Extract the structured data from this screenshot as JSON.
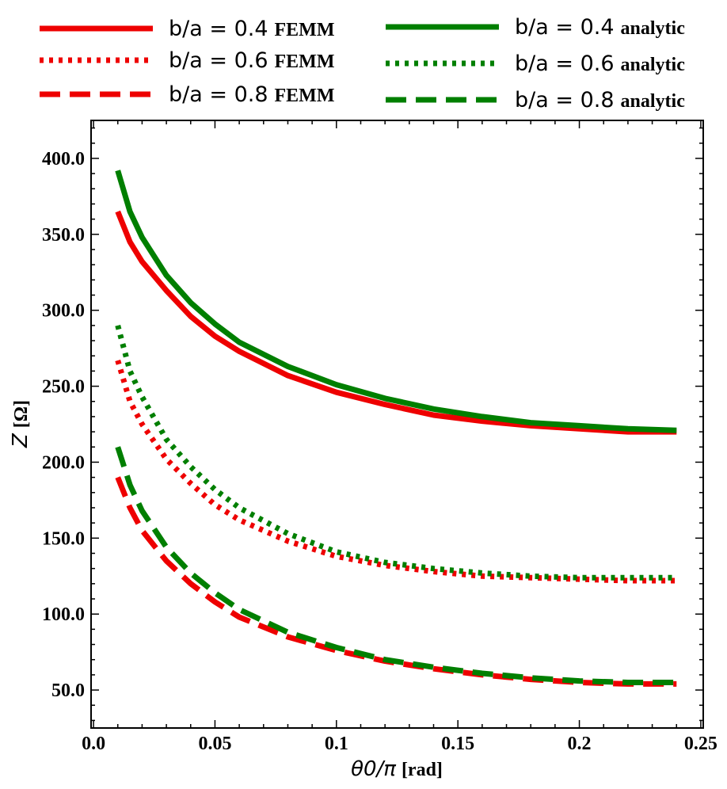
{
  "chart_data": {
    "type": "line",
    "xlabel": "θ0/π",
    "xlabel_unit": "[rad]",
    "ylabel": "Z",
    "ylabel_unit": "[Ω]",
    "xlim": [
      -0.001,
      0.251
    ],
    "ylim": [
      25,
      425
    ],
    "x_ticks": [
      0.0,
      0.05,
      0.1,
      0.15,
      0.2,
      0.25
    ],
    "x_tick_labels": [
      "0.0",
      "0.05",
      "0.1",
      "0.15",
      "0.2",
      "0.25"
    ],
    "y_ticks": [
      50,
      100,
      150,
      200,
      250,
      300,
      350,
      400
    ],
    "y_tick_labels": [
      "50.0",
      "100.0",
      "150.0",
      "200.0",
      "250.0",
      "300.0",
      "350.0",
      "400.0"
    ],
    "grid": false,
    "legend_position": "top, above plot",
    "x": [
      0.01,
      0.015,
      0.02,
      0.03,
      0.04,
      0.05,
      0.06,
      0.08,
      0.1,
      0.12,
      0.14,
      0.16,
      0.18,
      0.2,
      0.22,
      0.24
    ],
    "series": [
      {
        "name_prefix": "b/a = 0.4",
        "name_suffix": "FEMM",
        "color": "#ee0000",
        "dash": "solid",
        "values": [
          365,
          345,
          332,
          313,
          296,
          283,
          273,
          257,
          246,
          238,
          231,
          227,
          224,
          222,
          220,
          220
        ]
      },
      {
        "name_prefix": "b/a = 0.6",
        "name_suffix": "FEMM",
        "color": "#ee0000",
        "dash": "dotted",
        "values": [
          267,
          240,
          225,
          202,
          186,
          172,
          162,
          148,
          138,
          132,
          128,
          125,
          124,
          123,
          122,
          122
        ]
      },
      {
        "name_prefix": "b/a = 0.8",
        "name_suffix": "FEMM",
        "color": "#ee0000",
        "dash": "dashed",
        "values": [
          190,
          170,
          155,
          135,
          120,
          108,
          98,
          85,
          76,
          69,
          64,
          60,
          57,
          55,
          54,
          54
        ]
      },
      {
        "name_prefix": "b/a = 0.4",
        "name_suffix": "analytic",
        "color": "#007f00",
        "dash": "solid",
        "values": [
          392,
          365,
          348,
          323,
          305,
          291,
          279,
          263,
          251,
          242,
          235,
          230,
          226,
          224,
          222,
          221
        ]
      },
      {
        "name_prefix": "b/a = 0.6",
        "name_suffix": "analytic",
        "color": "#007f00",
        "dash": "dotted",
        "values": [
          290,
          260,
          243,
          215,
          197,
          182,
          170,
          153,
          141,
          134,
          130,
          127,
          125,
          124,
          124,
          124
        ]
      },
      {
        "name_prefix": "b/a = 0.8",
        "name_suffix": "analytic",
        "color": "#007f00",
        "dash": "dashed",
        "values": [
          210,
          185,
          168,
          144,
          127,
          114,
          103,
          88,
          78,
          70,
          65,
          61,
          58,
          56,
          55,
          55
        ]
      }
    ]
  }
}
